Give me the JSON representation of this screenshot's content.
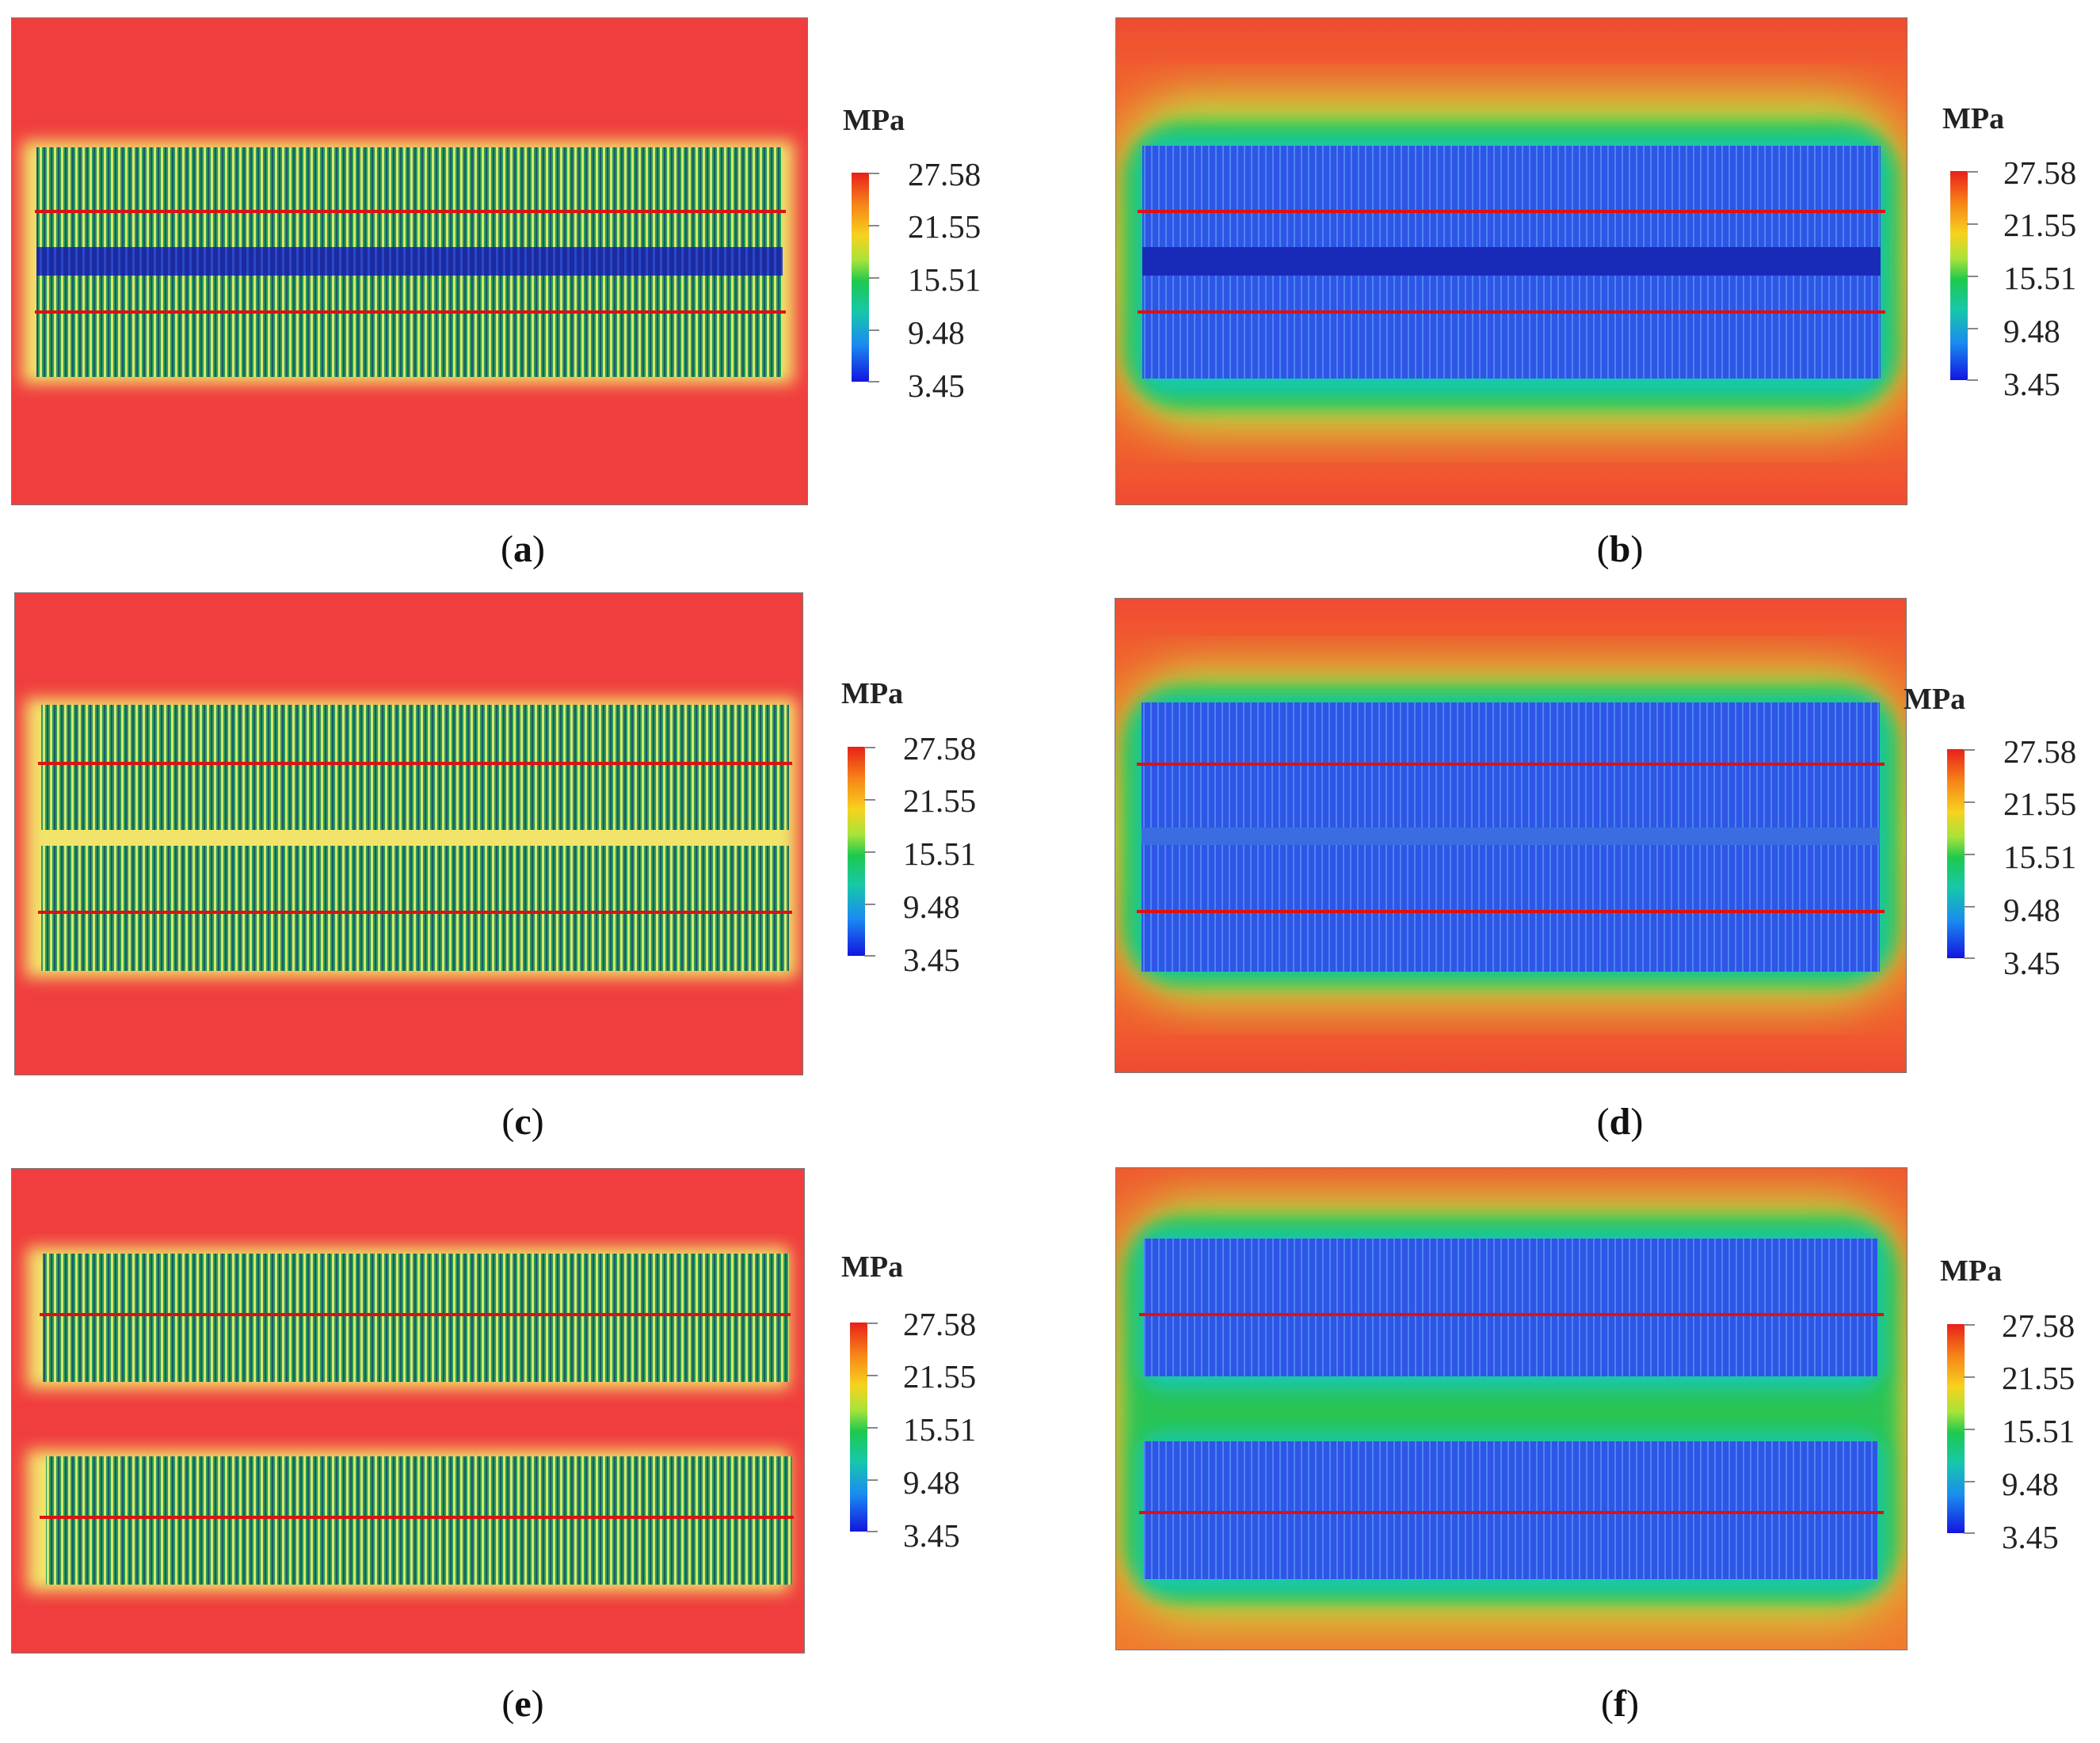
{
  "figure": {
    "legend": {
      "unit": "MPa",
      "values": [
        "27.58",
        "21.55",
        "15.51",
        "9.48",
        "3.45"
      ],
      "min": 3.45,
      "max": 27.58
    },
    "panels": [
      {
        "id": "a",
        "caption_open": "(",
        "caption_letter": "a",
        "caption_close": ")",
        "type": "single",
        "field": "narrow-halo"
      },
      {
        "id": "b",
        "caption_open": "(",
        "caption_letter": "b",
        "caption_close": ")",
        "type": "single",
        "field": "wide-halo"
      },
      {
        "id": "c",
        "caption_open": "(",
        "caption_letter": "c",
        "caption_close": ")",
        "type": "double-close",
        "field": "narrow-halo"
      },
      {
        "id": "d",
        "caption_open": "(",
        "caption_letter": "d",
        "caption_close": ")",
        "type": "double-close",
        "field": "wide-halo"
      },
      {
        "id": "e",
        "caption_open": "(",
        "caption_letter": "e",
        "caption_close": ")",
        "type": "double-apart",
        "field": "narrow-halo"
      },
      {
        "id": "f",
        "caption_open": "(",
        "caption_letter": "f",
        "caption_close": ")",
        "type": "double-apart",
        "field": "wide-halo"
      }
    ],
    "colors": {
      "background_stress": "#f03e3e",
      "relieved_stress": "#2a4ee6",
      "intermediate_stress": "#27c45a",
      "section_line": "#e01010"
    }
  }
}
